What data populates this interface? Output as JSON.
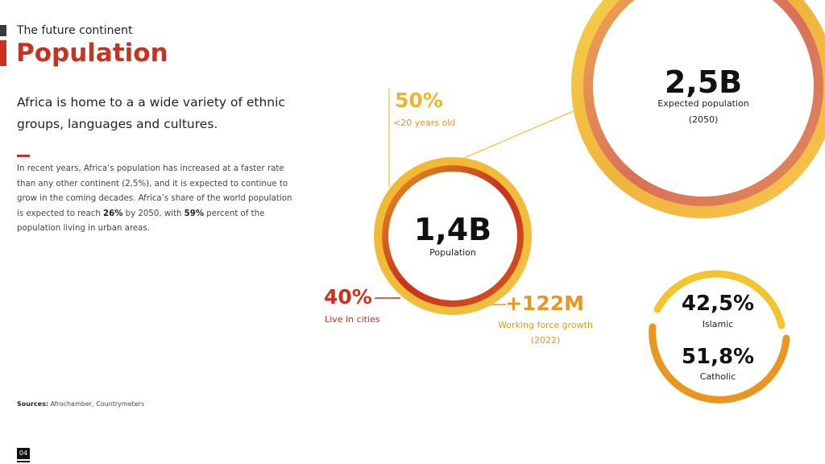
{
  "header": {
    "kicker": "The future continent",
    "title": "Population"
  },
  "intro": {
    "lead": "Africa is home to a a wide variety of ethnic groups, languages and cultures.",
    "body_1": "In recent years, Africa’s population has increased at a faster rate than any other continent (2,5%), and it is expected to continue to grow in the coming decades. Africa’s share of the world population is expected to reach ",
    "body_bold_1": "26%",
    "body_2": " by 2050, with ",
    "body_bold_2": "59%",
    "body_3": " percent of the population living in urban areas."
  },
  "stats": {
    "expected": {
      "value": "2,5B",
      "label_1": "Expected population",
      "label_2": "(2050)"
    },
    "population": {
      "value": "1,4B",
      "label": "Population"
    },
    "under20": {
      "value": "50%",
      "label": "<20 years old"
    },
    "cities": {
      "value": "40%",
      "label": "Live in cities"
    },
    "workforce": {
      "value": "+122M",
      "label_1": "Working force growth",
      "label_2": "(2022)"
    },
    "islamic": {
      "value": "42,5%",
      "label": "Islamic"
    },
    "catholic": {
      "value": "51,8%",
      "label": "Catholic"
    }
  },
  "colors": {
    "red": "#c8321e",
    "orange": "#e8961e",
    "yellow": "#f2c430",
    "salmon": "#d9705a"
  },
  "footer": {
    "sources_label": "Sources:",
    "sources_text": " Afrochamber, Countrymeters",
    "page_number": "04"
  }
}
